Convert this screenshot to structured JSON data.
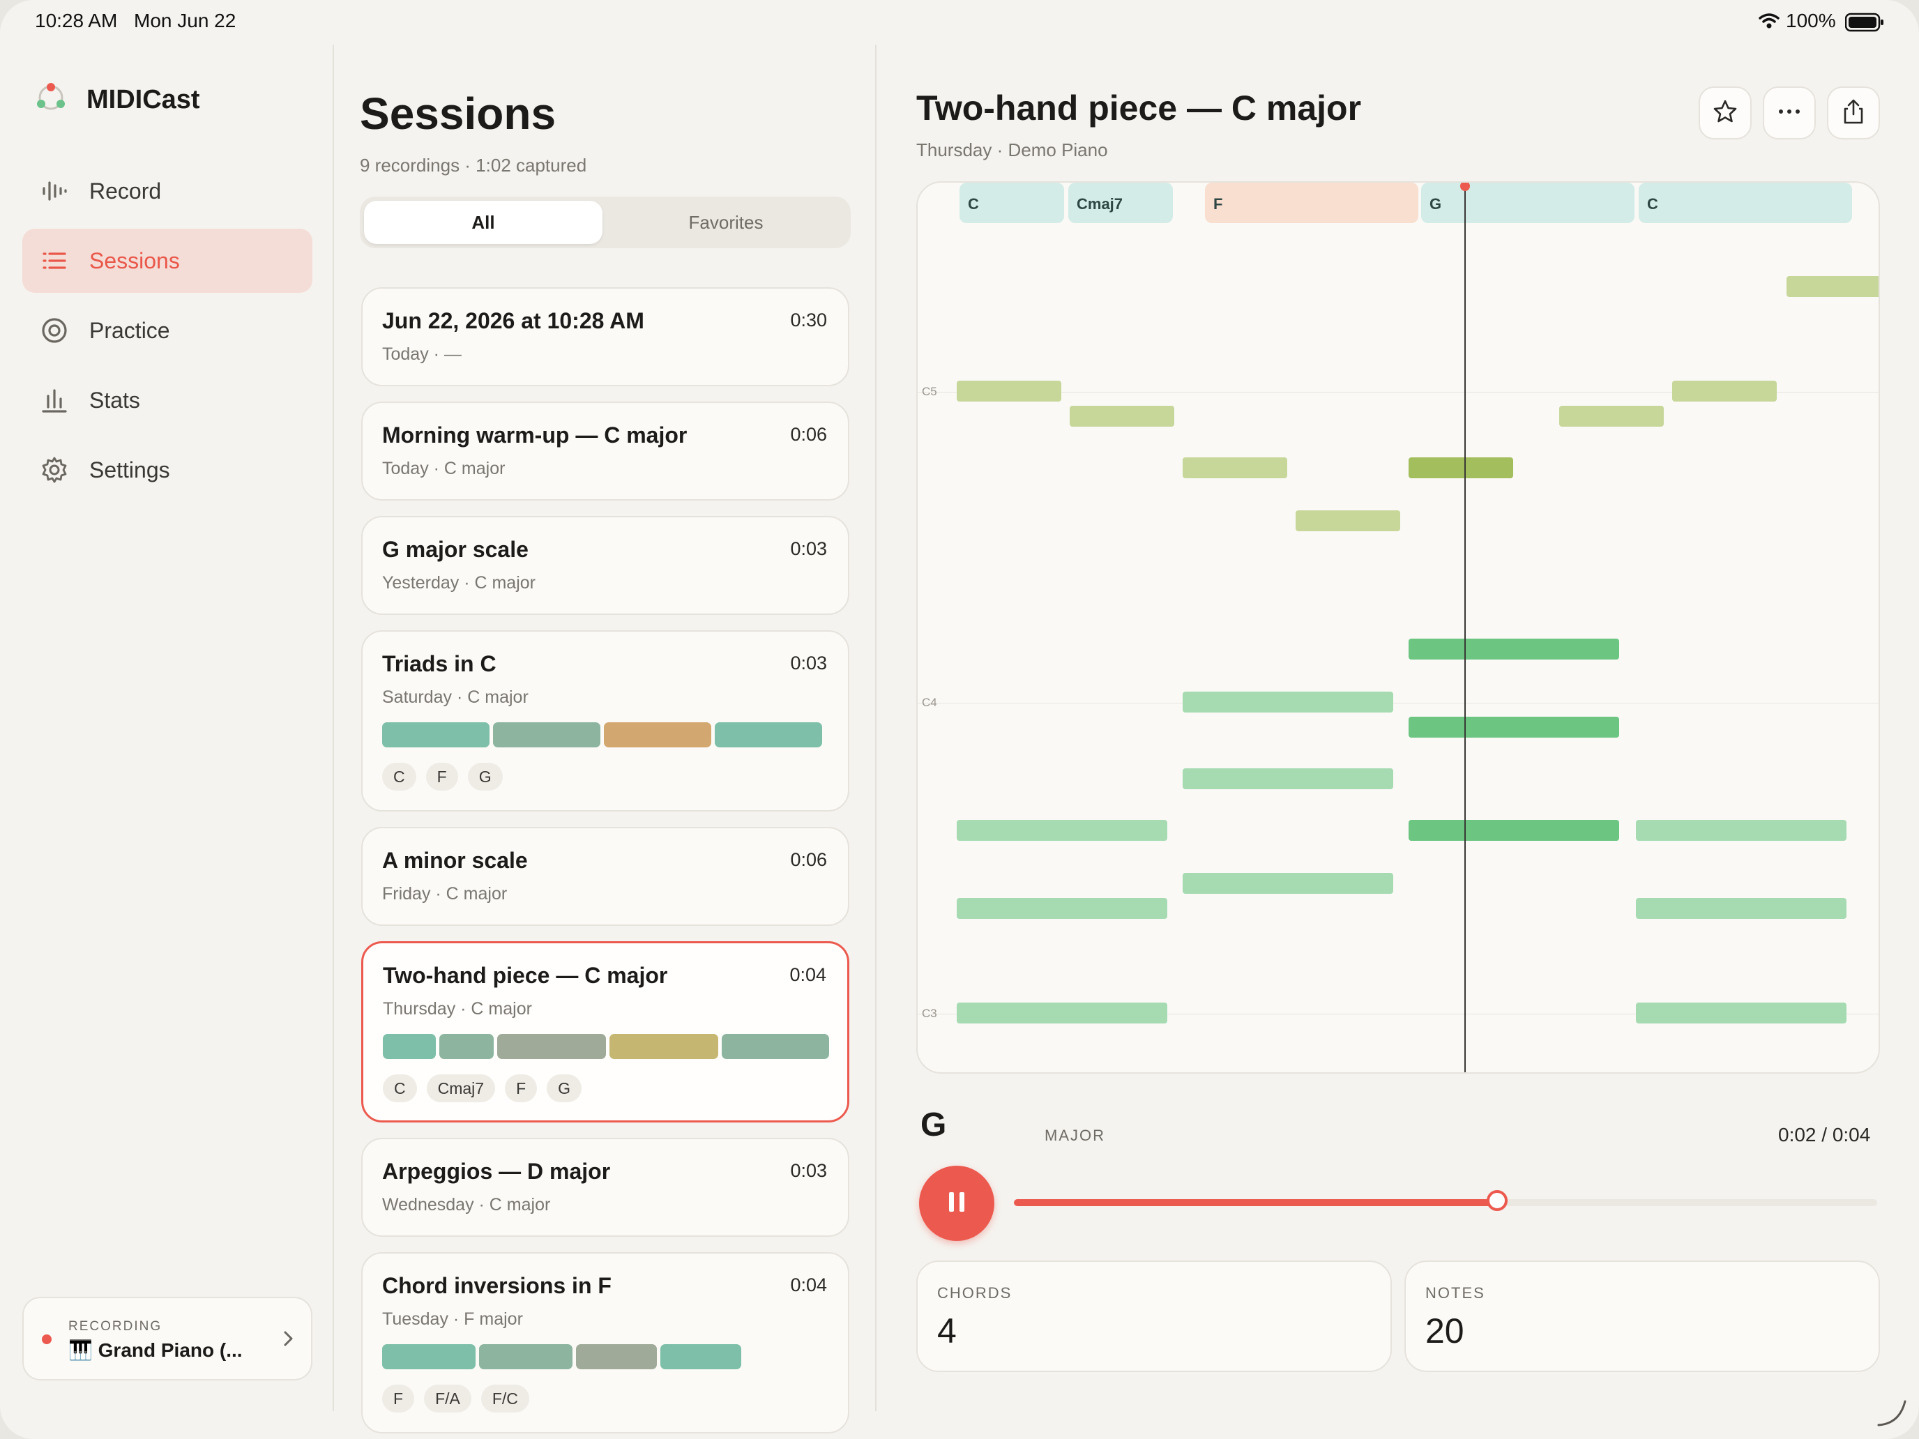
{
  "status_bar": {
    "time": "10:28 AM",
    "date": "Mon Jun 22",
    "battery": "100%"
  },
  "app": {
    "name": "MIDICast"
  },
  "sidebar": {
    "items": [
      {
        "label": "Record",
        "icon": "waveform-icon",
        "active": false
      },
      {
        "label": "Sessions",
        "icon": "list-icon",
        "active": true
      },
      {
        "label": "Practice",
        "icon": "target-icon",
        "active": false
      },
      {
        "label": "Stats",
        "icon": "bar-chart-icon",
        "active": false
      },
      {
        "label": "Settings",
        "icon": "gear-icon",
        "active": false
      }
    ],
    "recording": {
      "label": "RECORDING",
      "device": "🎹 Grand Piano (..."
    }
  },
  "sessions": {
    "title": "Sessions",
    "subtitle": "9 recordings · 1:02 captured",
    "segment": {
      "all": "All",
      "favorites": "Favorites",
      "selected": "All"
    },
    "items": [
      {
        "title": "Jun 22, 2026 at 10:28 AM",
        "duration": "0:30",
        "subtitle": "Today · —"
      },
      {
        "title": "Morning warm-up — C major",
        "duration": "0:06",
        "subtitle": "Today · C major"
      },
      {
        "title": "G major scale",
        "duration": "0:03",
        "subtitle": "Yesterday · C major"
      },
      {
        "title": "Triads in C",
        "duration": "0:03",
        "subtitle": "Saturday · C major",
        "chips": [
          "C",
          "F",
          "G"
        ]
      },
      {
        "title": "A minor scale",
        "duration": "0:06",
        "subtitle": "Friday · C major"
      },
      {
        "title": "Two-hand piece — C major",
        "duration": "0:04",
        "subtitle": "Thursday · C major",
        "chips": [
          "C",
          "Cmaj7",
          "F",
          "G"
        ],
        "selected": true
      },
      {
        "title": "Arpeggios — D major",
        "duration": "0:03",
        "subtitle": "Wednesday · C major"
      },
      {
        "title": "Chord inversions in F",
        "duration": "0:04",
        "subtitle": "Tuesday · F major",
        "chips": [
          "F",
          "F/A",
          "F/C"
        ]
      }
    ]
  },
  "detail": {
    "title": "Two-hand piece — C major",
    "subtitle": "Thursday · Demo Piano",
    "chords": [
      "C",
      "Cmaj7",
      "F",
      "G",
      "C"
    ],
    "octave_labels": [
      "C5",
      "C4",
      "C3"
    ],
    "current_chord": "G",
    "current_quality": "MAJOR",
    "time": "0:02 / 0:04",
    "progress": 0.56,
    "stats": {
      "chords_label": "CHORDS",
      "chords_value": "4",
      "notes_label": "NOTES",
      "notes_value": "20"
    }
  },
  "colors": {
    "accent": "#ec5a4f",
    "active_bg": "#f5ddd7"
  }
}
